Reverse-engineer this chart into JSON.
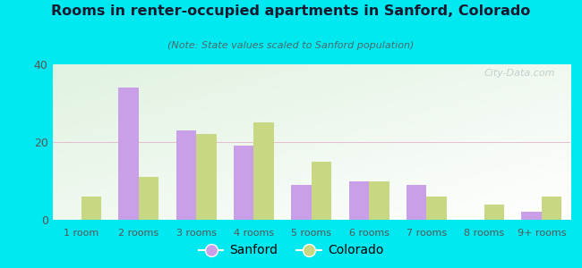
{
  "title": "Rooms in renter-occupied apartments in Sanford, Colorado",
  "subtitle": "(Note: State values scaled to Sanford population)",
  "categories": [
    "1 room",
    "2 rooms",
    "3 rooms",
    "4 rooms",
    "5 rooms",
    "6 rooms",
    "7 rooms",
    "8 rooms",
    "9+ rooms"
  ],
  "sanford_values": [
    0,
    34,
    23,
    19,
    9,
    10,
    9,
    0,
    2
  ],
  "colorado_values": [
    6,
    11,
    22,
    25,
    15,
    10,
    6,
    4,
    6
  ],
  "sanford_color": "#c9a0e8",
  "colorado_color": "#c8d882",
  "background_outer": "#00e8f0",
  "ylim": [
    0,
    40
  ],
  "yticks": [
    0,
    20,
    40
  ],
  "bar_width": 0.35,
  "watermark": "City-Data.com",
  "title_color": "#1a1a2e",
  "subtitle_color": "#4a6a6a",
  "tick_color": "#555555"
}
